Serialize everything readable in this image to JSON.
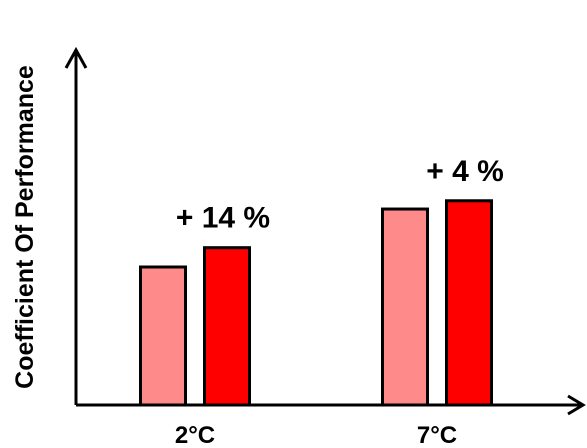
{
  "chart_data": {
    "type": "bar",
    "title": "",
    "xlabel": "",
    "ylabel": "Coefficient Of Performance",
    "categories": [
      "2°C",
      "7°C"
    ],
    "series": [
      {
        "values": [
          1.0,
          1.42
        ]
      },
      {
        "values": [
          1.14,
          1.48
        ]
      }
    ],
    "ylim": [
      0,
      1.8
    ],
    "grid": false,
    "legend": "none",
    "annotations": [
      {
        "category": "2°C",
        "text": "+ 14 %"
      },
      {
        "category": "7°C",
        "text": "+ 4 %"
      }
    ],
    "colors": {
      "series": [
        "#ff8a8a",
        "#ff0000"
      ],
      "outline": "#000000",
      "axis": "#000000"
    }
  }
}
